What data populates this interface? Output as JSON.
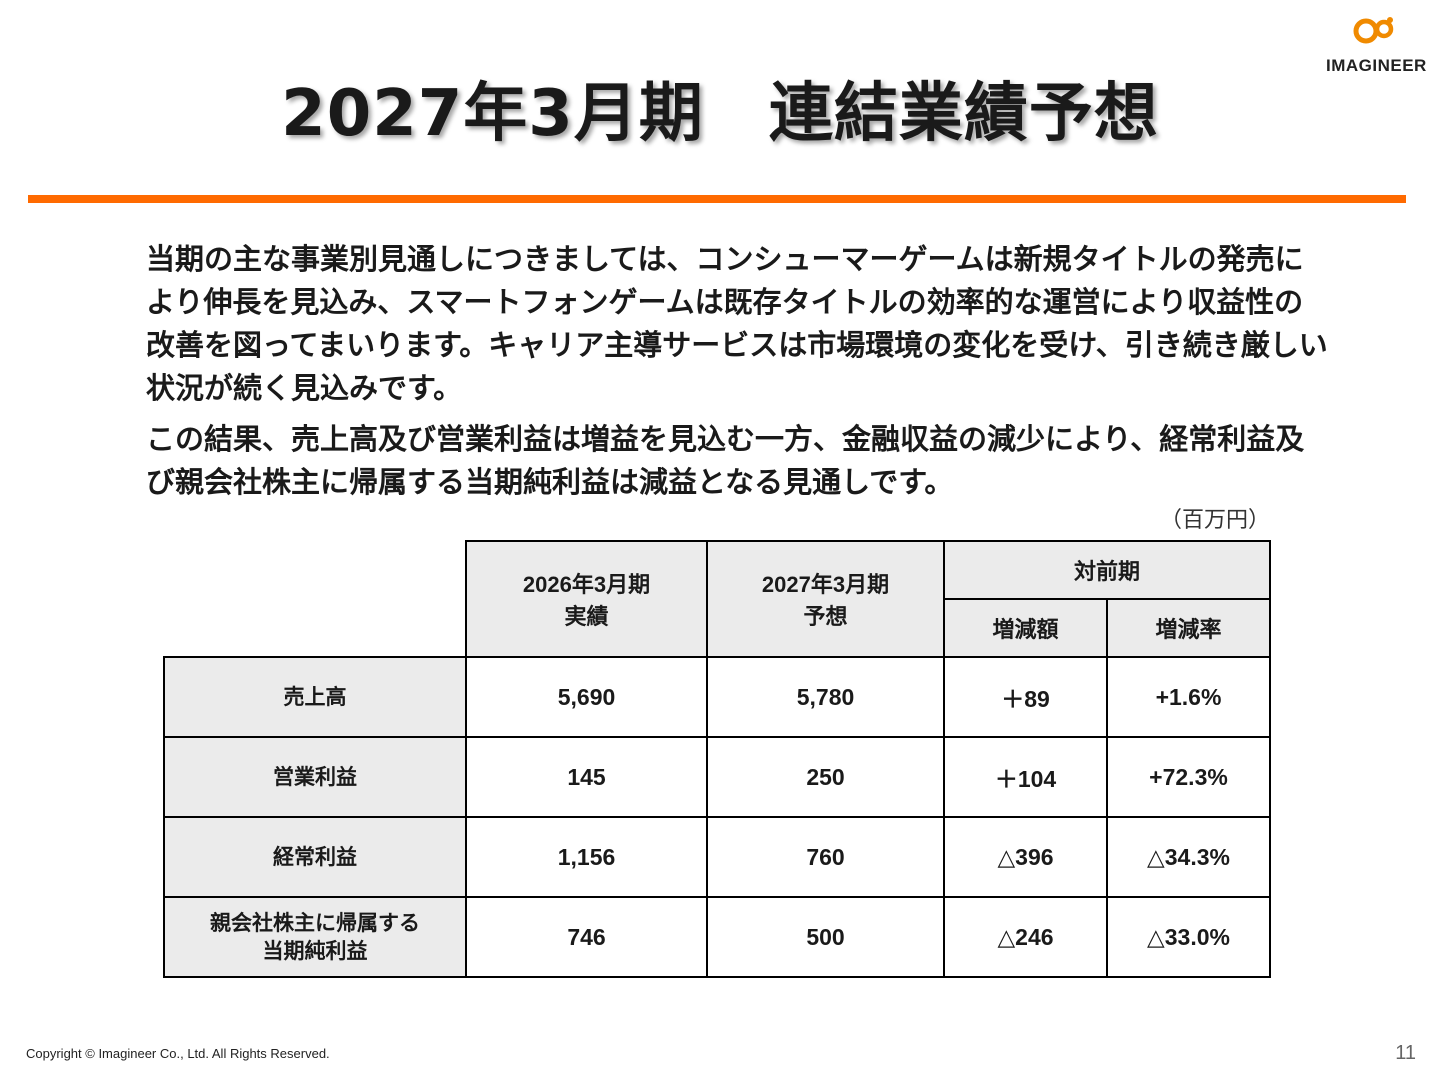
{
  "slide": {
    "title": "2027年3月期　連結業績予想",
    "logo_text": "IMAGINEER",
    "paragraphs": [
      "当期の主な事業別見通しにつきましては、コンシューマーゲームは新規タイトルの発売により伸長を見込み、スマートフォンゲームは既存タイトルの効率的な運営により収益性の改善を図ってまいります。キャリア主導サービスは市場環境の変化を受け、引き続き厳しい状況が続く見込みです。",
      "この結果、売上高及び営業利益は増益を見込む一方、金融収益の減少により、経常利益及び親会社株主に帰属する当期純利益は減益となる見通しです。"
    ],
    "unit_note": "（百万円）",
    "footer": "Copyright ©  Imagineer Co., Ltd. All Rights Reserved.",
    "page_number": "11"
  },
  "table": {
    "headers": {
      "col1_line1": "2026年3月期",
      "col1_line2": "実績",
      "col2_line1": "2027年3月期",
      "col2_line2": "予想",
      "yoy": "対前期",
      "diff": "増減額",
      "rate": "増減率"
    },
    "rows": [
      {
        "label_line1": "売上高",
        "label_line2": "",
        "fy2026": "5,690",
        "fy2027": "5,780",
        "diff": "＋89",
        "rate": "+1.6%"
      },
      {
        "label_line1": "営業利益",
        "label_line2": "",
        "fy2026": "145",
        "fy2027": "250",
        "diff": "＋104",
        "rate": "+72.3%"
      },
      {
        "label_line1": "経常利益",
        "label_line2": "",
        "fy2026": "1,156",
        "fy2027": "760",
        "diff": "△396",
        "rate": "△34.3%"
      },
      {
        "label_line1": "親会社株主に帰属する",
        "label_line2": "当期純利益",
        "fy2026": "746",
        "fy2027": "500",
        "diff": "△246",
        "rate": "△33.0%"
      }
    ]
  },
  "colors": {
    "accent": "#ff6a00",
    "header_fill": "#ebebeb",
    "text": "#1a1a1a"
  }
}
